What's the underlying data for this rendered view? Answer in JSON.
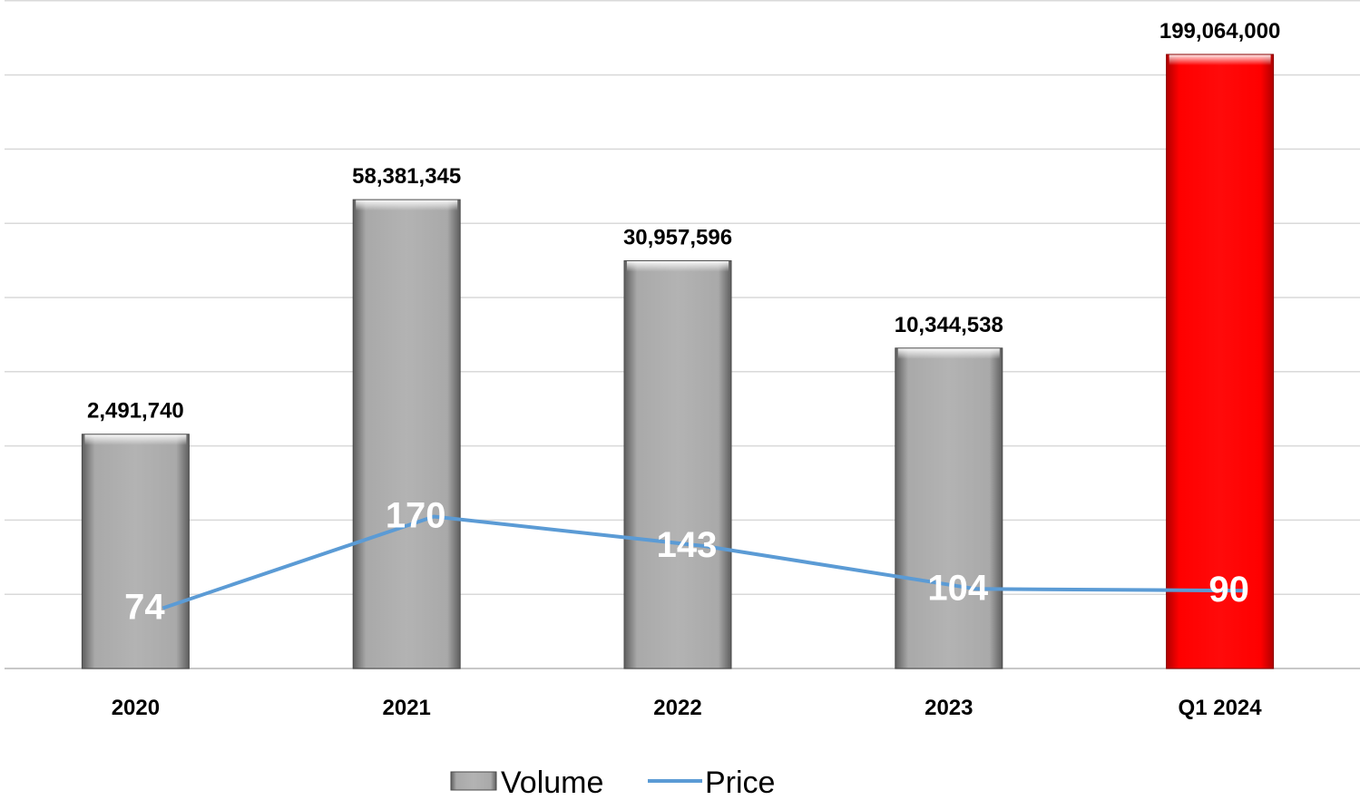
{
  "chart_data": {
    "type": "bar",
    "categories": [
      "2020",
      "2021",
      "2022",
      "2023",
      "Q1 2024"
    ],
    "series": [
      {
        "name": "Volume",
        "type": "bar",
        "values": [
          2491740,
          58381345,
          30957596,
          10344538,
          199064000
        ],
        "value_labels": [
          "2,491,740",
          "58,381,345",
          "30,957,596",
          "10,344,538",
          "199,064,000"
        ],
        "colors": [
          "#a6a6a6",
          "#a6a6a6",
          "#a6a6a6",
          "#a6a6a6",
          "#ff0000"
        ]
      },
      {
        "name": "Price",
        "type": "line",
        "values": [
          74,
          170,
          143,
          104,
          90
        ],
        "color": "#5b9bd5"
      }
    ],
    "legend_position": "bottom",
    "grid": true
  }
}
